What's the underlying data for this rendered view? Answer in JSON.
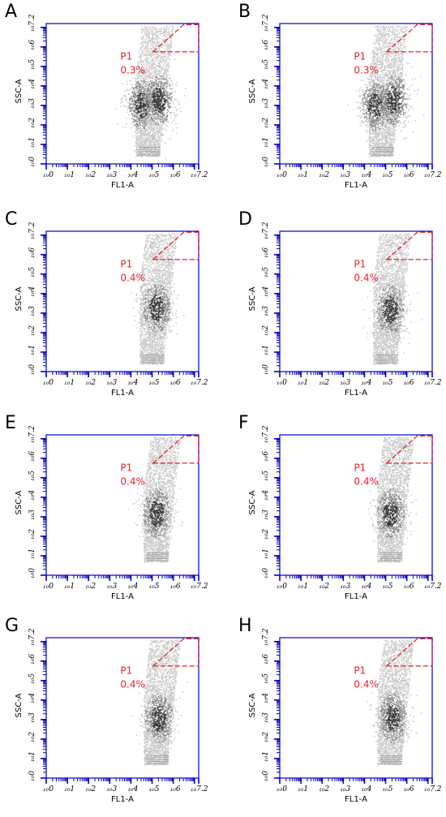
{
  "figure": {
    "panels": [
      "A",
      "B",
      "C",
      "D",
      "E",
      "F",
      "G",
      "H"
    ]
  },
  "colors": {
    "axis": "#0000cc",
    "gate": "#e8202a",
    "cloud_light": "#c8c8c8",
    "cloud_mid": "#8c8c8c",
    "cloud_dark": "#3c3c3c"
  },
  "chart_data": [
    {
      "panel": "A",
      "type": "scatter",
      "plot": "density",
      "xlabel": "FL1-A",
      "ylabel": "SSC-A",
      "xlim": [
        0,
        7.2
      ],
      "ylim": [
        0,
        7.2
      ],
      "scale": "log",
      "x_tick_labels": [
        "10^0",
        "10^1",
        "10^2",
        "10^3",
        "10^4",
        "10^5",
        "10^6",
        "10^7.2"
      ],
      "y_tick_labels": [
        "10^0",
        "10^1",
        "10^2",
        "10^3",
        "10^4",
        "10^5",
        "10^6",
        "10^7.2"
      ],
      "gate": {
        "name": "P1",
        "percent": "0.3%"
      },
      "cloud": {
        "x_min": 4.2,
        "x_max": 6.9,
        "y_min": 0.4,
        "y_max": 7.1,
        "peaks": [
          [
            4.5,
            3.05
          ],
          [
            5.3,
            3.3
          ]
        ]
      }
    },
    {
      "panel": "B",
      "type": "scatter",
      "plot": "density",
      "xlabel": "FL1-A",
      "ylabel": "SSC-A",
      "xlim": [
        0,
        7.2
      ],
      "ylim": [
        0,
        7.2
      ],
      "scale": "log",
      "x_tick_labels": [
        "10^0",
        "10^1",
        "10^2",
        "10^3",
        "10^4",
        "10^5",
        "10^6",
        "10^7.2"
      ],
      "y_tick_labels": [
        "10^0",
        "10^1",
        "10^2",
        "10^3",
        "10^4",
        "10^5",
        "10^6",
        "10^7.2"
      ],
      "gate": {
        "name": "P1",
        "percent": "0.3%"
      },
      "cloud": {
        "x_min": 4.2,
        "x_max": 6.9,
        "y_min": 0.4,
        "y_max": 7.1,
        "peaks": [
          [
            4.5,
            3.0
          ],
          [
            5.35,
            3.3
          ]
        ]
      }
    },
    {
      "panel": "C",
      "type": "scatter",
      "plot": "density",
      "xlabel": "FL1-A",
      "ylabel": "SSC-A",
      "xlim": [
        0,
        7.2
      ],
      "ylim": [
        0,
        7.2
      ],
      "scale": "log",
      "x_tick_labels": [
        "10^0",
        "10^1",
        "10^2",
        "10^3",
        "10^4",
        "10^5",
        "10^6",
        "10^7.2"
      ],
      "y_tick_labels": [
        "10^0",
        "10^1",
        "10^2",
        "10^3",
        "10^4",
        "10^5",
        "10^6",
        "10^7.2"
      ],
      "gate": {
        "name": "P1",
        "percent": "0.4%"
      },
      "cloud": {
        "x_min": 4.4,
        "x_max": 6.9,
        "y_min": 0.4,
        "y_max": 7.1,
        "peaks": [
          [
            5.2,
            3.3
          ]
        ]
      }
    },
    {
      "panel": "D",
      "type": "scatter",
      "plot": "density",
      "xlabel": "FL1-A",
      "ylabel": "SSC-A",
      "xlim": [
        0,
        7.2
      ],
      "ylim": [
        0,
        7.2
      ],
      "scale": "log",
      "x_tick_labels": [
        "10^0",
        "10^1",
        "10^2",
        "10^3",
        "10^4",
        "10^5",
        "10^6",
        "10^7.2"
      ],
      "y_tick_labels": [
        "10^0",
        "10^1",
        "10^2",
        "10^3",
        "10^4",
        "10^5",
        "10^6",
        "10^7.2"
      ],
      "gate": {
        "name": "P1",
        "percent": "0.4%"
      },
      "cloud": {
        "x_min": 4.4,
        "x_max": 6.9,
        "y_min": 0.4,
        "y_max": 7.1,
        "peaks": [
          [
            5.2,
            3.2
          ]
        ]
      }
    },
    {
      "panel": "E",
      "type": "scatter",
      "plot": "density",
      "xlabel": "FL1-A",
      "ylabel": "SSC-A",
      "xlim": [
        0,
        7.2
      ],
      "ylim": [
        0,
        7.2
      ],
      "scale": "log",
      "x_tick_labels": [
        "10^0",
        "10^1",
        "10^2",
        "10^3",
        "10^4",
        "10^5",
        "10^6",
        "10^7.2"
      ],
      "y_tick_labels": [
        "10^0",
        "10^1",
        "10^2",
        "10^3",
        "10^4",
        "10^5",
        "10^6",
        "10^7.2"
      ],
      "gate": {
        "name": "P1",
        "percent": "0.4%"
      },
      "cloud": {
        "x_min": 4.6,
        "x_max": 6.9,
        "y_min": 0.7,
        "y_max": 7.1,
        "peaks": [
          [
            5.2,
            3.2
          ]
        ]
      }
    },
    {
      "panel": "F",
      "type": "scatter",
      "plot": "density",
      "xlabel": "FL1-A",
      "ylabel": "SSC-A",
      "xlim": [
        0,
        7.2
      ],
      "ylim": [
        0,
        7.2
      ],
      "scale": "log",
      "x_tick_labels": [
        "10^0",
        "10^1",
        "10^2",
        "10^3",
        "10^4",
        "10^5",
        "10^6",
        "10^7.2"
      ],
      "y_tick_labels": [
        "10^0",
        "10^1",
        "10^2",
        "10^3",
        "10^4",
        "10^5",
        "10^6",
        "10^7.2"
      ],
      "gate": {
        "name": "P1",
        "percent": "0.4%"
      },
      "cloud": {
        "x_min": 4.6,
        "x_max": 6.9,
        "y_min": 0.7,
        "y_max": 7.1,
        "peaks": [
          [
            5.2,
            3.2
          ]
        ]
      }
    },
    {
      "panel": "G",
      "type": "scatter",
      "plot": "density",
      "xlabel": "FL1-A",
      "ylabel": "SSC-A",
      "xlim": [
        0,
        7.2
      ],
      "ylim": [
        0,
        7.2
      ],
      "scale": "log",
      "x_tick_labels": [
        "10^0",
        "10^1",
        "10^2",
        "10^3",
        "10^4",
        "10^5",
        "10^6",
        "10^7.2"
      ],
      "y_tick_labels": [
        "10^0",
        "10^1",
        "10^2",
        "10^3",
        "10^4",
        "10^5",
        "10^6",
        "10^7.2"
      ],
      "gate": {
        "name": "P1",
        "percent": "0.4%"
      },
      "cloud": {
        "x_min": 4.6,
        "x_max": 6.9,
        "y_min": 0.7,
        "y_max": 7.1,
        "peaks": [
          [
            5.3,
            3.1
          ]
        ]
      }
    },
    {
      "panel": "H",
      "type": "scatter",
      "plot": "density",
      "xlabel": "FL1-A",
      "ylabel": "SSC-A",
      "xlim": [
        0,
        7.2
      ],
      "ylim": [
        0,
        7.2
      ],
      "scale": "log",
      "x_tick_labels": [
        "10^0",
        "10^1",
        "10^2",
        "10^3",
        "10^4",
        "10^5",
        "10^6",
        "10^7.2"
      ],
      "y_tick_labels": [
        "10^0",
        "10^1",
        "10^2",
        "10^3",
        "10^4",
        "10^5",
        "10^6",
        "10^7.2"
      ],
      "gate": {
        "name": "P1",
        "percent": "0.4%"
      },
      "cloud": {
        "x_min": 4.6,
        "x_max": 6.9,
        "y_min": 0.7,
        "y_max": 7.1,
        "peaks": [
          [
            5.3,
            3.1
          ]
        ]
      }
    }
  ]
}
